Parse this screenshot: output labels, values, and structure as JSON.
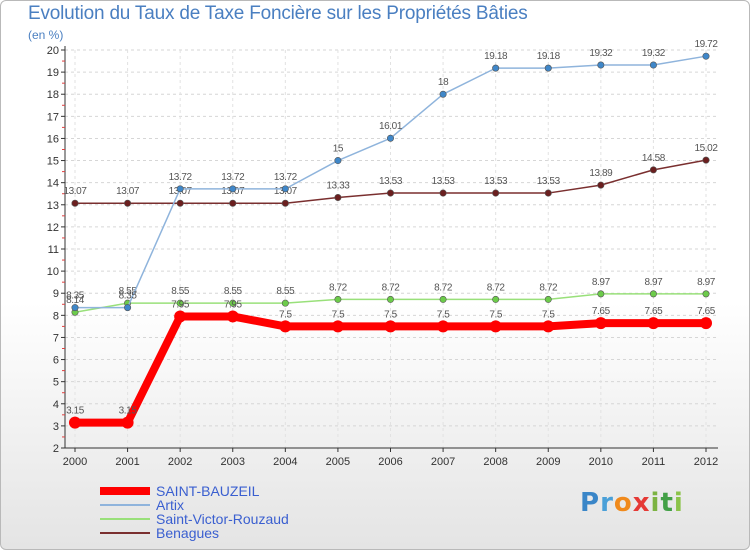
{
  "chart_data": {
    "type": "line",
    "title": "Evolution du Taux de Taxe Foncière sur les Propriétés Bâties",
    "ylabel": "(en %)",
    "xlabel": "",
    "ylim": [
      2,
      20
    ],
    "yticks": [
      2,
      3,
      4,
      5,
      6,
      7,
      8,
      9,
      10,
      11,
      12,
      13,
      14,
      15,
      16,
      17,
      18,
      19,
      20
    ],
    "categories": [
      "2000",
      "2001",
      "2002",
      "2003",
      "2004",
      "2005",
      "2006",
      "2007",
      "2008",
      "2009",
      "2010",
      "2011",
      "2012"
    ],
    "series": [
      {
        "name": "Benagues",
        "color": "#7a2f2f",
        "dot": "#6b1f1f",
        "values": [
          13.07,
          13.07,
          13.07,
          13.07,
          13.07,
          13.33,
          13.53,
          13.53,
          13.53,
          13.53,
          13.89,
          14.58,
          15.02
        ],
        "labels": [
          "13.07",
          "13.07",
          "13.07",
          "13.07",
          "13.07",
          "13.33",
          "13.53",
          "13.53",
          "13.53",
          "13.53",
          "13.89",
          "14.58",
          "15.02"
        ]
      },
      {
        "name": "Saint-Victor-Rouzaud",
        "color": "#99e07a",
        "dot": "#6ccb4a",
        "values": [
          8.14,
          8.55,
          8.55,
          8.55,
          8.55,
          8.72,
          8.72,
          8.72,
          8.72,
          8.72,
          8.97,
          8.97,
          8.97
        ],
        "labels": [
          "8.14",
          "8.55",
          "8.55",
          "8.55",
          "8.55",
          "8.72",
          "8.72",
          "8.72",
          "8.72",
          "8.72",
          "8.97",
          "8.97",
          "8.97"
        ]
      },
      {
        "name": "Artix",
        "color": "#8fb4dc",
        "dot": "#3f87c9",
        "values": [
          8.35,
          8.35,
          13.72,
          13.72,
          13.72,
          15,
          16.01,
          18,
          19.18,
          19.18,
          19.32,
          19.32,
          19.72
        ],
        "labels": [
          "8.35",
          "8.35",
          "13.72",
          "13.72",
          "13.72",
          "15",
          "16.01",
          "18",
          "19.18",
          "19.18",
          "19.32",
          "19.32",
          "19.72"
        ]
      },
      {
        "name": "SAINT-BAUZEIL",
        "color": "#ff0000",
        "dot": "#ff0000",
        "values": [
          3.15,
          3.15,
          7.95,
          7.95,
          7.5,
          7.5,
          7.5,
          7.5,
          7.5,
          7.5,
          7.65,
          7.65,
          7.65
        ],
        "labels": [
          "3.15",
          "3.15",
          "7.95",
          "7.95",
          "7.5",
          "7.5",
          "7.5",
          "7.5",
          "7.5",
          "7.5",
          "7.65",
          "7.65",
          "7.65"
        ]
      }
    ],
    "legend": [
      {
        "name": "SAINT-BAUZEIL",
        "color": "#ff0000"
      },
      {
        "name": "Artix",
        "color": "#8fb4dc"
      },
      {
        "name": "Saint-Victor-Rouzaud",
        "color": "#99e07a"
      },
      {
        "name": "Benagues",
        "color": "#7a2f2f"
      }
    ]
  },
  "logo": {
    "p": "P",
    "r": "r",
    "o": "o",
    "x": "x",
    "i": "i",
    "t": "t",
    "i2": "i"
  }
}
